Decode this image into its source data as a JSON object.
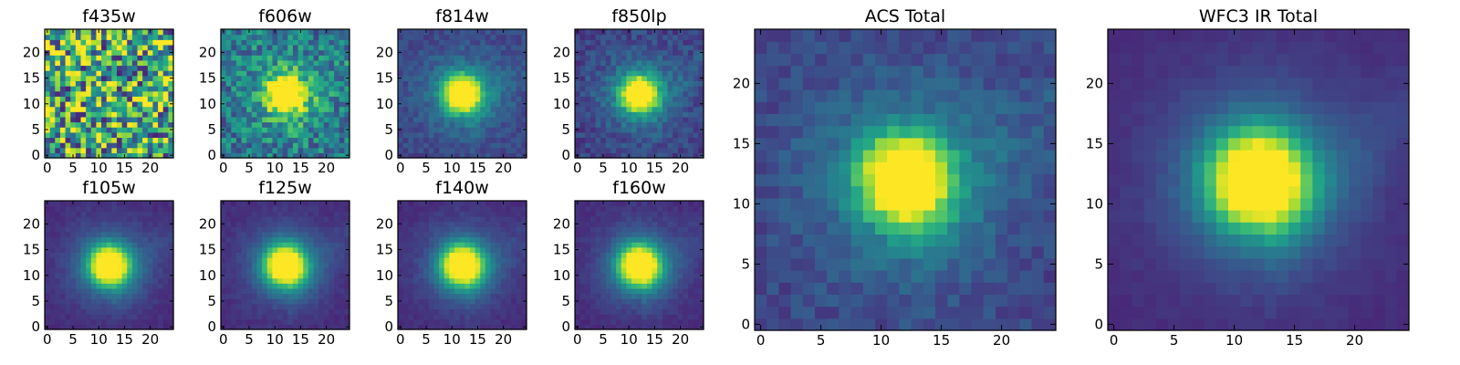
{
  "figure": {
    "background": "#ffffff",
    "colormap": "viridis"
  },
  "chart_data": [
    {
      "type": "heatmap",
      "title": "f435w",
      "grid_size": 25,
      "xlim": [
        -0.5,
        24.5
      ],
      "ylim": [
        -0.5,
        24.5
      ],
      "xticks": [
        0,
        5,
        10,
        15,
        20
      ],
      "yticks": [
        0,
        5,
        10,
        15,
        20
      ],
      "image_model": {
        "noise_only": true,
        "peak_center": [
          12,
          12
        ],
        "peak_sigma": 3.0,
        "noise": 0.5,
        "baseline": 0.6,
        "seed": 11
      }
    },
    {
      "type": "heatmap",
      "title": "f606w",
      "grid_size": 25,
      "xlim": [
        -0.5,
        24.5
      ],
      "ylim": [
        -0.5,
        24.5
      ],
      "xticks": [
        0,
        5,
        10,
        15,
        20
      ],
      "yticks": [
        0,
        5,
        10,
        15,
        20
      ],
      "image_model": {
        "noise_only": false,
        "peak_center": [
          12,
          12
        ],
        "peak_sigma": 2.2,
        "noise": 0.22,
        "baseline": 0.38,
        "seed": 23
      }
    },
    {
      "type": "heatmap",
      "title": "f814w",
      "grid_size": 25,
      "xlim": [
        -0.5,
        24.5
      ],
      "ylim": [
        -0.5,
        24.5
      ],
      "xticks": [
        0,
        5,
        10,
        15,
        20
      ],
      "yticks": [
        0,
        5,
        10,
        15,
        20
      ],
      "image_model": {
        "noise_only": false,
        "peak_center": [
          12,
          12
        ],
        "peak_sigma": 2.3,
        "noise": 0.07,
        "baseline": 0.2,
        "seed": 37
      }
    },
    {
      "type": "heatmap",
      "title": "f850lp",
      "grid_size": 25,
      "xlim": [
        -0.5,
        24.5
      ],
      "ylim": [
        -0.5,
        24.5
      ],
      "xticks": [
        0,
        5,
        10,
        15,
        20
      ],
      "yticks": [
        0,
        5,
        10,
        15,
        20
      ],
      "image_model": {
        "noise_only": false,
        "peak_center": [
          12,
          12
        ],
        "peak_sigma": 2.3,
        "noise": 0.09,
        "baseline": 0.18,
        "seed": 41
      }
    },
    {
      "type": "heatmap",
      "title": "f105w",
      "grid_size": 25,
      "xlim": [
        -0.5,
        24.5
      ],
      "ylim": [
        -0.5,
        24.5
      ],
      "xticks": [
        0,
        5,
        10,
        15,
        20
      ],
      "yticks": [
        0,
        5,
        10,
        15,
        20
      ],
      "image_model": {
        "noise_only": false,
        "peak_center": [
          12,
          12
        ],
        "peak_sigma": 2.6,
        "noise": 0.03,
        "baseline": 0.12,
        "seed": 53
      }
    },
    {
      "type": "heatmap",
      "title": "f125w",
      "grid_size": 25,
      "xlim": [
        -0.5,
        24.5
      ],
      "ylim": [
        -0.5,
        24.5
      ],
      "xticks": [
        0,
        5,
        10,
        15,
        20
      ],
      "yticks": [
        0,
        5,
        10,
        15,
        20
      ],
      "image_model": {
        "noise_only": false,
        "peak_center": [
          12,
          12
        ],
        "peak_sigma": 2.7,
        "noise": 0.03,
        "baseline": 0.12,
        "seed": 59
      }
    },
    {
      "type": "heatmap",
      "title": "f140w",
      "grid_size": 25,
      "xlim": [
        -0.5,
        24.5
      ],
      "ylim": [
        -0.5,
        24.5
      ],
      "xticks": [
        0,
        5,
        10,
        15,
        20
      ],
      "yticks": [
        0,
        5,
        10,
        15,
        20
      ],
      "image_model": {
        "noise_only": false,
        "peak_center": [
          12,
          12
        ],
        "peak_sigma": 2.7,
        "noise": 0.03,
        "baseline": 0.12,
        "seed": 61
      }
    },
    {
      "type": "heatmap",
      "title": "f160w",
      "grid_size": 25,
      "xlim": [
        -0.5,
        24.5
      ],
      "ylim": [
        -0.5,
        24.5
      ],
      "xticks": [
        0,
        5,
        10,
        15,
        20
      ],
      "yticks": [
        0,
        5,
        10,
        15,
        20
      ],
      "image_model": {
        "noise_only": false,
        "peak_center": [
          12,
          12
        ],
        "peak_sigma": 2.7,
        "noise": 0.03,
        "baseline": 0.12,
        "seed": 67
      }
    },
    {
      "type": "heatmap",
      "title": "ACS Total",
      "grid_size": 25,
      "xlim": [
        -0.5,
        24.5
      ],
      "ylim": [
        -0.5,
        24.5
      ],
      "xticks": [
        0,
        5,
        10,
        15,
        20
      ],
      "yticks": [
        0,
        5,
        10,
        15,
        20
      ],
      "image_model": {
        "noise_only": false,
        "peak_center": [
          12,
          12
        ],
        "peak_sigma": 2.4,
        "noise": 0.07,
        "baseline": 0.2,
        "seed": 71
      }
    },
    {
      "type": "heatmap",
      "title": "WFC3 IR Total",
      "grid_size": 25,
      "xlim": [
        -0.5,
        24.5
      ],
      "ylim": [
        -0.5,
        24.5
      ],
      "xticks": [
        0,
        5,
        10,
        15,
        20
      ],
      "yticks": [
        0,
        5,
        10,
        15,
        20
      ],
      "image_model": {
        "noise_only": false,
        "peak_center": [
          12,
          12
        ],
        "peak_sigma": 2.8,
        "noise": 0.02,
        "baseline": 0.12,
        "seed": 79
      }
    }
  ]
}
